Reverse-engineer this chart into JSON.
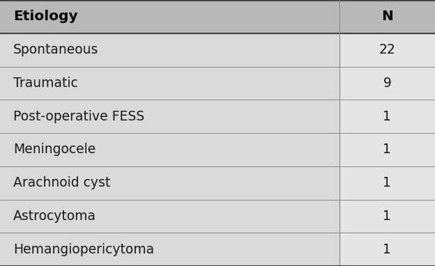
{
  "headers": [
    "Etiology",
    "N"
  ],
  "rows": [
    [
      "Spontaneous",
      "22"
    ],
    [
      "Traumatic",
      "9"
    ],
    [
      "Post-operative FESS",
      "1"
    ],
    [
      "Meningocele",
      "1"
    ],
    [
      "Arachnoid cyst",
      "1"
    ],
    [
      "Astrocytoma",
      "1"
    ],
    [
      "Hemangiopericytoma",
      "1"
    ]
  ],
  "header_bg": "#b8b8b8",
  "row_bg": "#d9d9d9",
  "right_col_bg": "#e4e4e4",
  "text_color": "#1a1a1a",
  "header_text_color": "#000000",
  "col_split": 0.78,
  "fig_width": 6.24,
  "fig_height": 3.82,
  "font_size": 13.5,
  "header_font_size": 14.5
}
